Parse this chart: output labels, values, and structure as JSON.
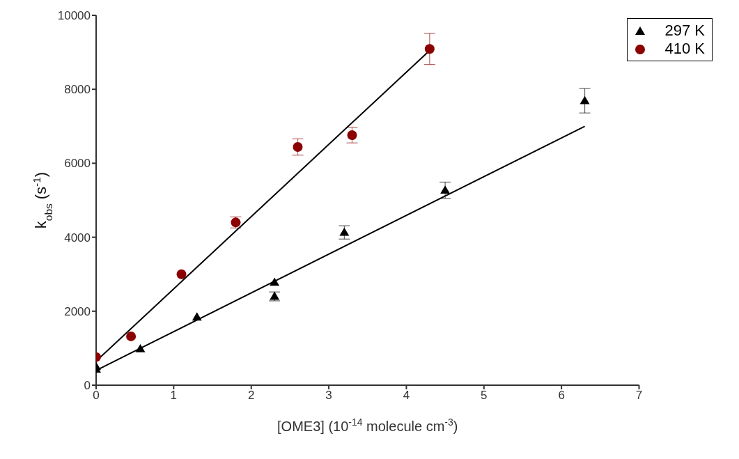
{
  "chart_data": {
    "type": "scatter",
    "xlabel": "[OME3] (10$^{-14}$ molecule cm$^{-3}$)",
    "ylabel": "k$_{obs}$ (s$^{-1}$)",
    "xlim": [
      0,
      7
    ],
    "xticks": [
      0,
      1,
      2,
      3,
      4,
      5,
      6,
      7
    ],
    "ylim": [
      0,
      10000
    ],
    "yticks": [
      0,
      2000,
      4000,
      6000,
      8000,
      10000
    ],
    "grid": false,
    "legend": "top right",
    "series": [
      {
        "name": "297 K",
        "marker": "triangle",
        "color": "#000000",
        "x": [
          0,
          0,
          0.57,
          1.3,
          2.3,
          2.3,
          3.2,
          4.5,
          6.3
        ],
        "values": [
          430,
          500,
          980,
          1840,
          2780,
          2400,
          4130,
          5270,
          7690
        ],
        "errors": [
          null,
          null,
          null,
          null,
          null,
          120,
          180,
          220,
          330
        ]
      },
      {
        "name": "410 K",
        "marker": "circle",
        "color": "#8b0000",
        "x": [
          0,
          0.45,
          1.1,
          1.8,
          2.6,
          3.3,
          4.3
        ],
        "values": [
          760,
          1320,
          3000,
          4400,
          6440,
          6760,
          9090
        ],
        "errors": [
          null,
          null,
          null,
          150,
          220,
          210,
          420
        ]
      },
      {
        "type": "line",
        "color": "#000000",
        "line_style": "solid",
        "x": [
          0,
          6.3
        ],
        "values": [
          400,
          7000
        ]
      },
      {
        "type": "line",
        "color": "#000000",
        "line_style": "solid",
        "x": [
          0,
          4.3
        ],
        "values": [
          650,
          9050
        ]
      }
    ]
  }
}
